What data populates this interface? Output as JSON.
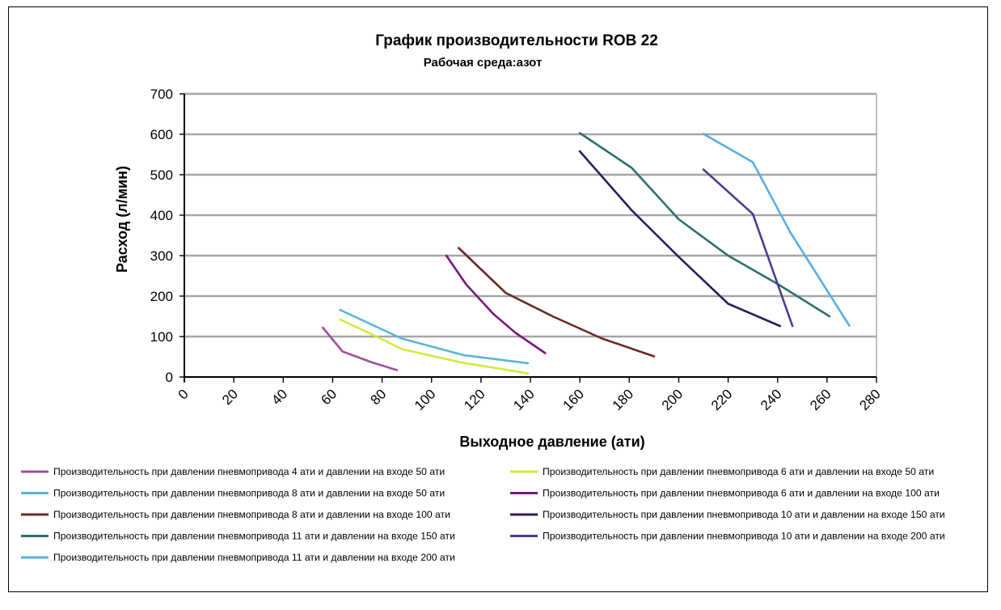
{
  "chart_data": {
    "type": "line",
    "title": "График производительности ROB 22",
    "subtitle": "Рабочая среда:азот",
    "xlabel": "Выходное давление (ати)",
    "ylabel": "Расход (л/мин)",
    "xlim": [
      0,
      280
    ],
    "ylim": [
      0,
      700
    ],
    "x_ticks": [
      "0",
      "20",
      "40",
      "60",
      "80",
      "100",
      "120",
      "140",
      "160",
      "180",
      "200",
      "220",
      "240",
      "260",
      "280"
    ],
    "y_ticks": [
      "0",
      "100",
      "200",
      "300",
      "400",
      "500",
      "600",
      "700"
    ],
    "grid": "horizontal",
    "legend_position": "bottom",
    "series": [
      {
        "name": "Производительность при давлении пневмопривода 4 ати и давлении на входе 50 ати",
        "color": "#a0509e",
        "points": [
          [
            56,
            122
          ],
          [
            64,
            63
          ],
          [
            76,
            36
          ],
          [
            86,
            17
          ]
        ]
      },
      {
        "name": "Производительность при давлении пневмопривода 6 ати и давлении на входе 50 ати",
        "color": "#d4e83c",
        "points": [
          [
            63,
            142
          ],
          [
            75,
            108
          ],
          [
            88,
            69
          ],
          [
            112,
            36
          ],
          [
            139,
            9
          ]
        ]
      },
      {
        "name": "Производительность при давлении пневмопривода 8 ати и давлении на входе 50 ати",
        "color": "#5ab4d0",
        "points": [
          [
            63,
            166
          ],
          [
            88,
            95
          ],
          [
            113,
            54
          ],
          [
            139,
            34
          ]
        ]
      },
      {
        "name": "Производительность при давлении пневмопривода 6 ати и давлении на входе 100 ати",
        "color": "#78187a",
        "points": [
          [
            106,
            300
          ],
          [
            114,
            229
          ],
          [
            125,
            156
          ],
          [
            134,
            109
          ],
          [
            146,
            59
          ]
        ]
      },
      {
        "name": "Производительность при давлении пневмопривода 8 ати и давлении на входе 100 ати",
        "color": "#6a2a22",
        "points": [
          [
            111,
            319
          ],
          [
            130,
            208
          ],
          [
            149,
            150
          ],
          [
            169,
            95
          ],
          [
            190,
            51
          ]
        ]
      },
      {
        "name": "Производительность при давлении пневмопривода 10 ати и давлении на входе 150 ати",
        "color": "#2c1a5c",
        "points": [
          [
            160,
            558
          ],
          [
            181,
            412
          ],
          [
            200,
            297
          ],
          [
            220,
            181
          ],
          [
            241,
            126
          ]
        ]
      },
      {
        "name": "Производительность при давлении пневмопривода 11 ати и давлении на входе 150 ати",
        "color": "#2e6e6e",
        "points": [
          [
            160,
            603
          ],
          [
            181,
            517
          ],
          [
            200,
            390
          ],
          [
            220,
            300
          ],
          [
            240,
            230
          ],
          [
            261,
            150
          ]
        ]
      },
      {
        "name": "Производительность при давлении пневмопривода 10 ати и давлении на входе 200 ати",
        "color": "#4a3e8e",
        "points": [
          [
            210,
            513
          ],
          [
            230,
            403
          ],
          [
            246,
            126
          ]
        ]
      },
      {
        "name": "Производительность при давлении пневмопривода 11 ати и давлении на входе 200 ати",
        "color": "#58aee4",
        "points": [
          [
            210,
            601
          ],
          [
            230,
            531
          ],
          [
            245,
            359
          ],
          [
            269,
            127
          ]
        ]
      }
    ],
    "legend_order": [
      0,
      1,
      2,
      3,
      4,
      5,
      6,
      7,
      8
    ]
  }
}
